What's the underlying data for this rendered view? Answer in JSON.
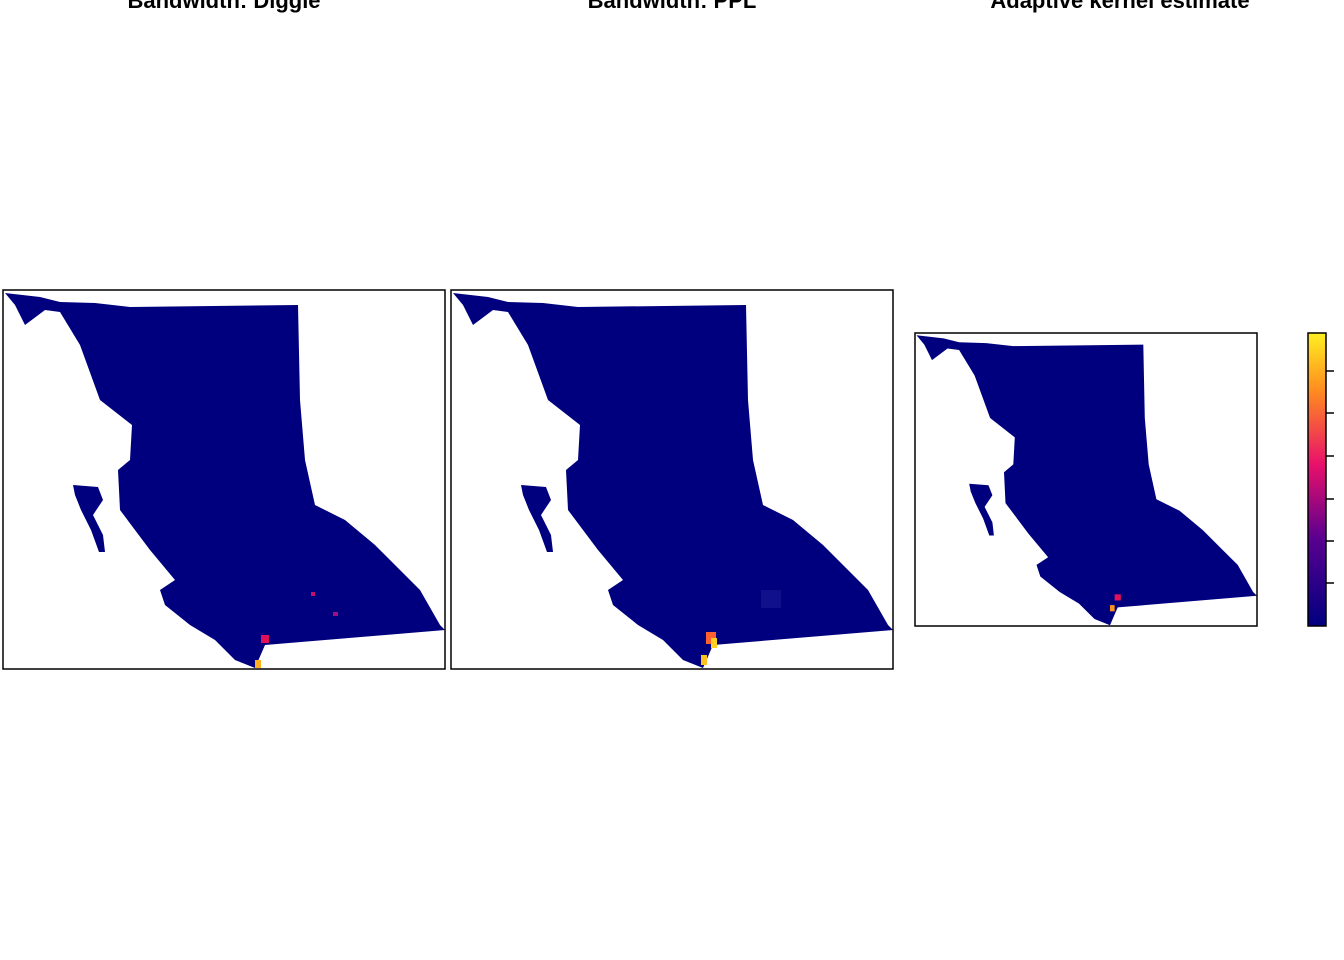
{
  "panels": [
    {
      "title": "Bandwidth: Diggle"
    },
    {
      "title": "Bandwidth: PPL"
    },
    {
      "title": "Adaptive kernel estimate"
    }
  ]
}
